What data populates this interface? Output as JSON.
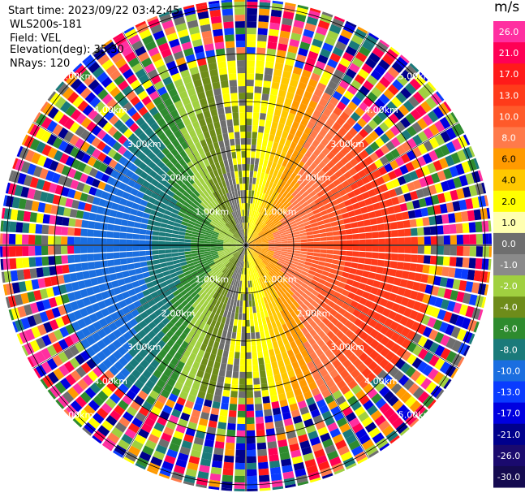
{
  "header": {
    "start_time": "Start time: 2023/09/22 03:42:45",
    "instrument": "WLS200s-181",
    "field": "Field: VEL",
    "elevation": "Elevation(deg): 35.30",
    "nrays": "NRays: 120"
  },
  "chart_data": {
    "type": "heatmap",
    "projection": "polar-ppi",
    "n_rays": 120,
    "range_rings_km": [
      1,
      2,
      3,
      4,
      5
    ],
    "ring_labels": [
      "1.00km",
      "2.00km",
      "3.00km",
      "4.00km",
      "5.00km"
    ],
    "colorbar": {
      "unit": "m/s",
      "tick_labels": [
        "26.0",
        "21.0",
        "17.0",
        "13.0",
        "10.0",
        "8.0",
        "6.0",
        "4.0",
        "2.0",
        "1.0",
        "0.0",
        "-1.0",
        "-2.0",
        "-4.0",
        "-6.0",
        "-8.0",
        "-10.0",
        "-13.0",
        "-17.0",
        "-21.0",
        "-26.0",
        "-30.0"
      ],
      "colors": [
        "#ff2fa0",
        "#ff0055",
        "#ff1a1a",
        "#ff3b1a",
        "#ff5a2a",
        "#ff7a4a",
        "#ff9a00",
        "#ffc800",
        "#ffff00",
        "#ffffb0",
        "#6e6e6e",
        "#8a8a8a",
        "#a0d040",
        "#6e8c1a",
        "#2e8b2e",
        "#1a7a7a",
        "#1a6ee0",
        "#0a3cff",
        "#0000e0",
        "#00008c",
        "#1a0a6e",
        "#140a50"
      ]
    },
    "rings": {
      "r1": "1.00km",
      "r2": "2.00km",
      "r3": "3.00km",
      "r4": "4.00km",
      "r5": "5.00km"
    }
  },
  "colors": {
    "background": "#ffffff",
    "grid": "#000000"
  }
}
